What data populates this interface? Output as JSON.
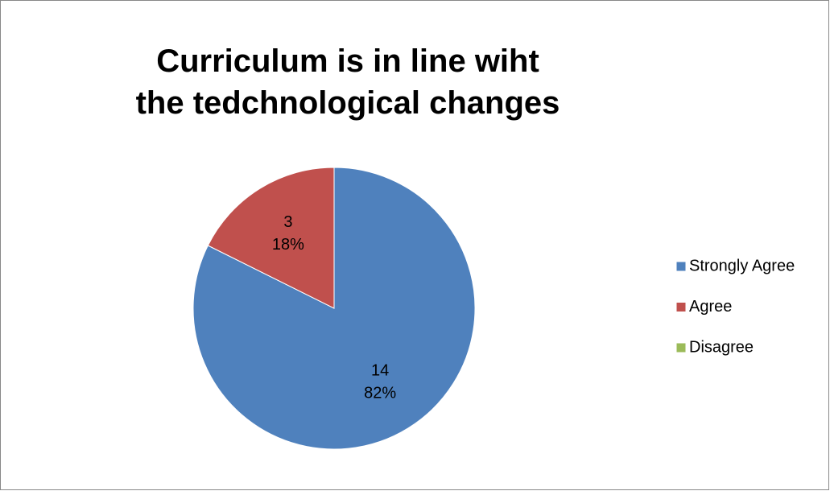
{
  "chart_data": {
    "type": "pie",
    "title": "Curriculum is in line wiht the tedchnological changes",
    "categories": [
      "Strongly Agree",
      "Agree",
      "Disagree"
    ],
    "values": [
      14,
      3,
      0
    ],
    "percentages": [
      82,
      18,
      0
    ],
    "percentage_labels": [
      "82%",
      "18%",
      null
    ],
    "colors": [
      "#4f81bd",
      "#c0504d",
      "#9bbb59"
    ],
    "legend": "right"
  }
}
